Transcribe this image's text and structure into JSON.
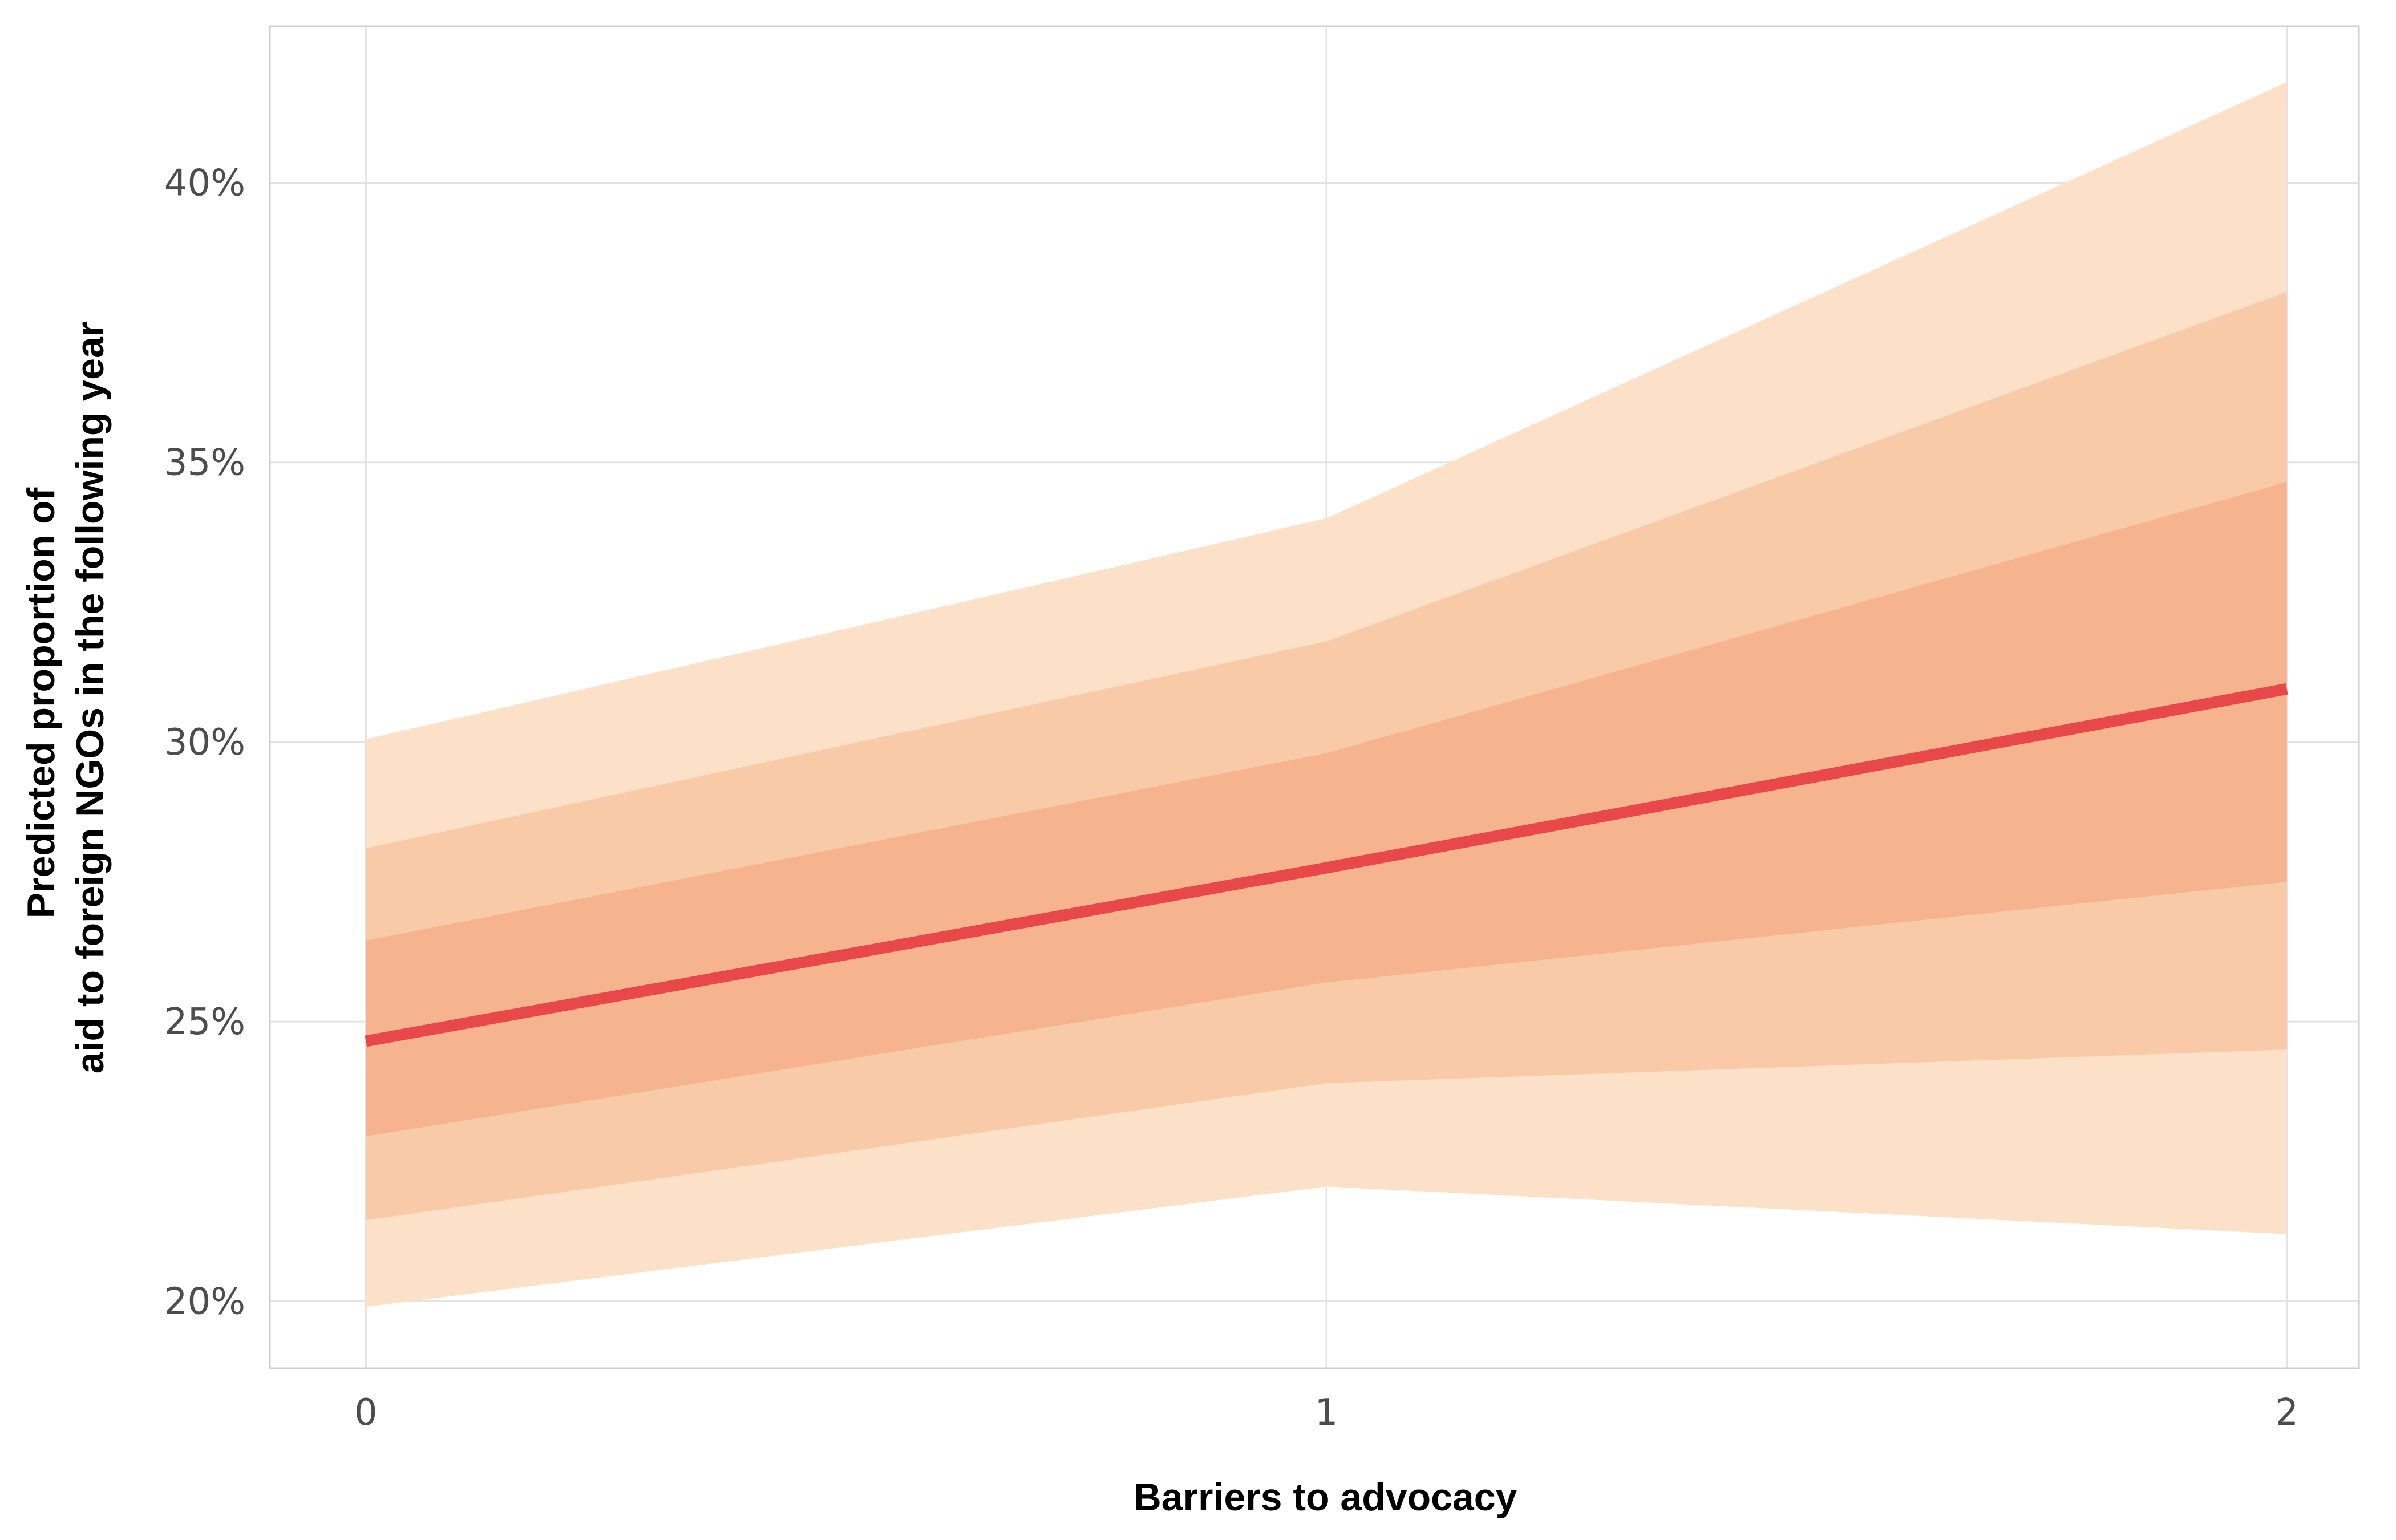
{
  "chart_data": {
    "type": "area",
    "xlabel": "Barriers to advocacy",
    "ylabel_lines": [
      "Predicted proportion of",
      "aid to foreign NGOs in the following year"
    ],
    "x": [
      0,
      1,
      2
    ],
    "x_ticks": [
      0,
      1,
      2
    ],
    "x_tick_labels": [
      "0",
      "1",
      "2"
    ],
    "xlim": [
      -0.1,
      2.075
    ],
    "y_ticks": [
      0.2,
      0.25,
      0.3,
      0.35,
      0.4
    ],
    "y_tick_labels": [
      "20%",
      "25%",
      "30%",
      "35%",
      "40%"
    ],
    "ylim": [
      0.188,
      0.428
    ],
    "grid": true,
    "line": {
      "values": [
        0.2465,
        0.2775,
        0.3095
      ],
      "color": "#e8484a"
    },
    "bands": [
      {
        "lower": [
          0.199,
          0.2205,
          0.212
        ],
        "upper": [
          0.3005,
          0.34,
          0.418
        ],
        "color": "#fce0c8"
      },
      {
        "lower": [
          0.2145,
          0.239,
          0.245
        ],
        "upper": [
          0.281,
          0.318,
          0.3805
        ],
        "color": "#f9caa7"
      },
      {
        "lower": [
          0.2295,
          0.257,
          0.275
        ],
        "upper": [
          0.2645,
          0.298,
          0.3465
        ],
        "color": "#f6b48e"
      }
    ]
  }
}
